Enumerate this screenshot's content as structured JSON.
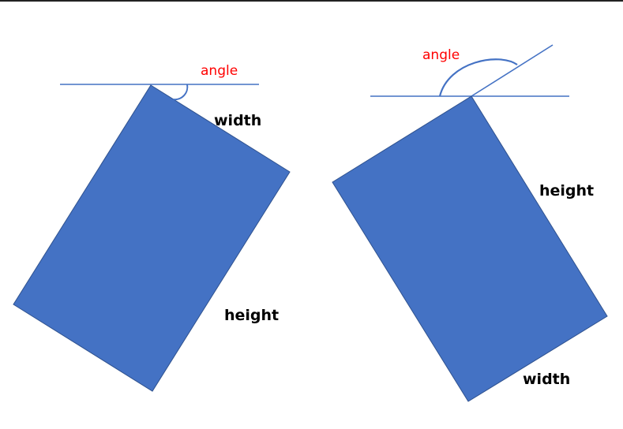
{
  "colors": {
    "shape_fill": "#4472c4",
    "shape_stroke": "#2f528f",
    "line": "#4472c4",
    "angle_label": "#ff0000",
    "dimension_label": "#000000",
    "top_border": "#222222"
  },
  "left_diagram": {
    "angle_label": "angle",
    "width_label": "width",
    "height_label": "height"
  },
  "right_diagram": {
    "angle_label": "angle",
    "width_label": "width",
    "height_label": "height"
  }
}
